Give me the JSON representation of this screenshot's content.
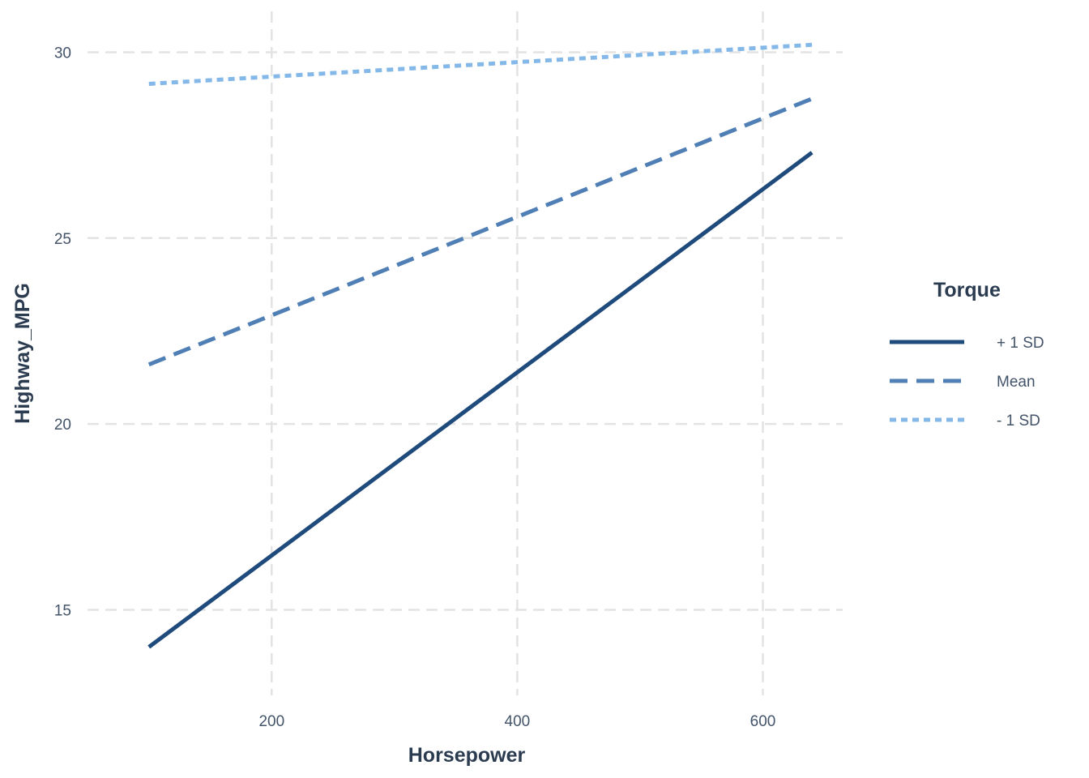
{
  "chart_data": {
    "type": "line",
    "xlabel": "Horsepower",
    "ylabel": "Highway_MPG",
    "xlim": [
      50,
      665
    ],
    "ylim": [
      12.7,
      31.1
    ],
    "xticks": [
      200,
      400,
      600
    ],
    "yticks": [
      15,
      20,
      25,
      30
    ],
    "grid": true,
    "legend": {
      "title": "Torque",
      "position": "right"
    },
    "series": [
      {
        "name": "+ 1 SD",
        "color": "#1f4a7c",
        "dash": "solid",
        "x": [
          100,
          640
        ],
        "y": [
          14.0,
          27.3
        ]
      },
      {
        "name": "Mean",
        "color": "#4f7fb5",
        "dash": "dashed",
        "x": [
          100,
          640
        ],
        "y": [
          21.6,
          28.75
        ]
      },
      {
        "name": "- 1 SD",
        "color": "#84b8e8",
        "dash": "dotted",
        "x": [
          100,
          640
        ],
        "y": [
          29.15,
          30.2
        ]
      }
    ]
  }
}
